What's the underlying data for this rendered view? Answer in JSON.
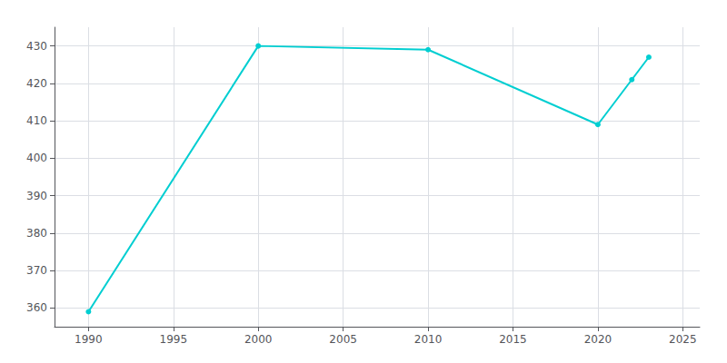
{
  "chart_data": {
    "type": "line",
    "x": [
      1990,
      2000,
      2010,
      2020,
      2022,
      2023
    ],
    "values": [
      359,
      430,
      429,
      409,
      421,
      427
    ],
    "color": "#00CED1",
    "marker": "circle",
    "xlim": [
      1988,
      2026
    ],
    "ylim": [
      355,
      435
    ],
    "xticks": [
      1990,
      1995,
      2000,
      2005,
      2010,
      2015,
      2020,
      2025
    ],
    "yticks": [
      360,
      370,
      380,
      390,
      400,
      410,
      420,
      430
    ],
    "grid": true
  }
}
